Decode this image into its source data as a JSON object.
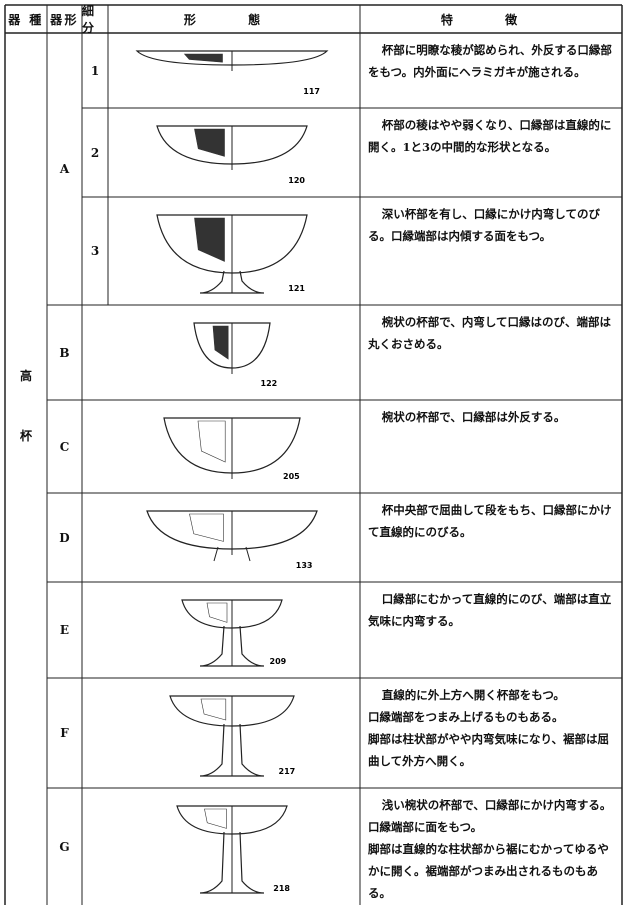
{
  "header": {
    "type": "器 種",
    "form": "器形",
    "sub": "細分",
    "shape": "形 態",
    "feature": "特 徴"
  },
  "category": [
    "高",
    "杯"
  ],
  "rows": [
    {
      "form": "A",
      "sub": "1",
      "fig": "117",
      "text": [
        "杯部に明瞭な稜が認められ、外反する口縁部をもつ。内外面にヘラミガキが施される。"
      ]
    },
    {
      "sub": "2",
      "fig": "120",
      "text": [
        "杯部の稜はやや弱くなり、口縁部は直線的に開く。1と3の中間的な形状となる。"
      ]
    },
    {
      "sub": "3",
      "fig": "121",
      "text": [
        "深い杯部を有し、口縁にかけ内弯してのびる。口縁端部は内傾する面をもつ。"
      ]
    },
    {
      "form": "B",
      "fig": "122",
      "text": [
        "椀状の杯部で、内弯して口縁はのび、端部は丸くおさめる。"
      ]
    },
    {
      "form": "C",
      "fig": "205",
      "text": [
        "椀状の杯部で、口縁部は外反する。"
      ]
    },
    {
      "form": "D",
      "fig": "133",
      "text": [
        "杯中央部で屈曲して段をもち、口縁部にかけて直線的にのびる。"
      ]
    },
    {
      "form": "E",
      "fig": "209",
      "text": [
        "口縁部にむかって直線的にのび、端部は直立気味に内弯する。"
      ]
    },
    {
      "form": "F",
      "fig": "217",
      "text": [
        "直線的に外上方へ開く杯部をもつ。",
        "口縁端部をつまみ上げるものもある。",
        "脚部は柱状部がやや内弯気味になり、裾部は屈曲して外方へ開く。"
      ]
    },
    {
      "form": "G",
      "fig": "218",
      "text": [
        "浅い椀状の杯部で、口縁部にかけ内弯する。",
        "口縁端部に面をもつ。",
        "脚部は直線的な柱状部から裾にむかってゆるやかに開く。裾端部がつまみ出されるものもある。"
      ]
    }
  ]
}
